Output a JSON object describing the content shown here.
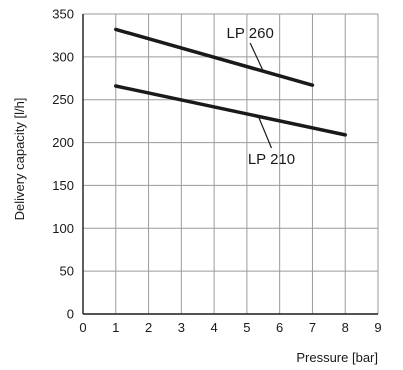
{
  "chart_data": {
    "type": "line",
    "xlabel": "Pressure [bar]",
    "ylabel": "Delivery capacity [l/h]",
    "xlim": [
      0,
      9
    ],
    "ylim": [
      0,
      350
    ],
    "xticks": [
      0,
      1,
      2,
      3,
      4,
      5,
      6,
      7,
      8,
      9
    ],
    "yticks": [
      0,
      50,
      100,
      150,
      200,
      250,
      300,
      350
    ],
    "grid": true,
    "series": [
      {
        "name": "LP 260",
        "x": [
          1,
          7
        ],
        "y": [
          332,
          267
        ],
        "color": "#1a1a1a"
      },
      {
        "name": "LP 210",
        "x": [
          1,
          8
        ],
        "y": [
          266,
          209
        ],
        "color": "#1a1a1a"
      }
    ],
    "annotations": [
      {
        "text": "LP 260",
        "series": "LP 260",
        "at_x": 5.5,
        "label_x": 5.1,
        "label_y": 322
      },
      {
        "text": "LP 210",
        "series": "LP 210",
        "at_x": 5.35,
        "label_x": 5.75,
        "label_y": 175
      }
    ]
  }
}
